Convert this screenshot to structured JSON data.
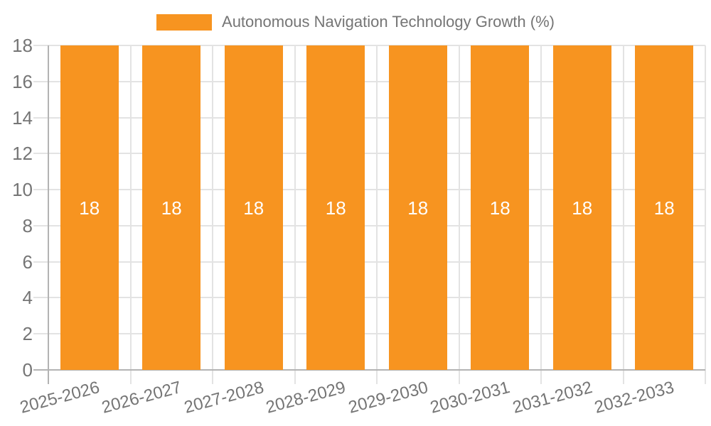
{
  "legend": {
    "label": "Autonomous Navigation Technology Growth (%)"
  },
  "chart_data": {
    "type": "bar",
    "title": "",
    "xlabel": "",
    "ylabel": "",
    "categories": [
      "2025-2026",
      "2026-2027",
      "2027-2028",
      "2028-2029",
      "2029-2030",
      "2030-2031",
      "2031-2032",
      "2032-2033"
    ],
    "series": [
      {
        "name": "Autonomous Navigation Technology Growth (%)",
        "values": [
          18,
          18,
          18,
          18,
          18,
          18,
          18,
          18
        ]
      }
    ],
    "value_labels": [
      "18",
      "18",
      "18",
      "18",
      "18",
      "18",
      "18",
      "18"
    ],
    "ylim": [
      0,
      18
    ],
    "yticks": [
      0,
      2,
      4,
      6,
      8,
      10,
      12,
      14,
      16,
      18
    ],
    "grid": true,
    "legend_position": "top",
    "xtick_rotation_deg": -15,
    "colors": {
      "bar": "#f79420",
      "value_label": "#ffffff",
      "axis_text": "#757575",
      "gridline": "#e3e3e3",
      "axis_line": "#b3b3b3",
      "tick_mark": "#dddddd"
    }
  }
}
